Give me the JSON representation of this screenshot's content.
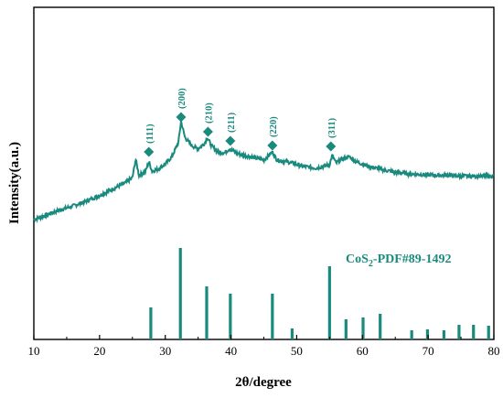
{
  "chart_data": {
    "type": "line",
    "xlabel": "2θ/degree",
    "ylabel": "Intensity(a.u.)",
    "xlim": [
      10,
      80
    ],
    "x_ticks": [
      "10",
      "20",
      "30",
      "40",
      "50",
      "60",
      "70",
      "80"
    ],
    "y_ticks": "none",
    "grid": false,
    "colors": {
      "series": "#1a8a7e",
      "axis": "#000000"
    },
    "series": [
      {
        "x": [
          10,
          12,
          14,
          16,
          18,
          20,
          22,
          24,
          25,
          25.5,
          26,
          27,
          27.5,
          28,
          29,
          30,
          31,
          32,
          32.4,
          33,
          34,
          35,
          36,
          36.4,
          37,
          38,
          39,
          39.8,
          41,
          43,
          45,
          46.3,
          47,
          49,
          51,
          53,
          55,
          55.4,
          56,
          57,
          58,
          59,
          61,
          63,
          65,
          67,
          69,
          71,
          73,
          75,
          77,
          79,
          80
        ],
        "y": [
          0,
          0.06,
          0.12,
          0.17,
          0.23,
          0.3,
          0.38,
          0.46,
          0.52,
          0.75,
          0.55,
          0.6,
          0.72,
          0.6,
          0.63,
          0.69,
          0.78,
          0.96,
          1.22,
          1.02,
          0.92,
          0.88,
          0.95,
          1.02,
          0.92,
          0.84,
          0.83,
          0.88,
          0.82,
          0.78,
          0.74,
          0.84,
          0.74,
          0.71,
          0.66,
          0.64,
          0.68,
          0.8,
          0.7,
          0.76,
          0.78,
          0.72,
          0.66,
          0.62,
          0.59,
          0.57,
          0.56,
          0.55,
          0.55,
          0.54,
          0.54,
          0.54,
          0.54
        ]
      }
    ],
    "peak_labels": [
      {
        "x": 27.5,
        "label": "(111)"
      },
      {
        "x": 32.4,
        "label": "(200)"
      },
      {
        "x": 36.5,
        "label": "(210)"
      },
      {
        "x": 39.9,
        "label": "(211)"
      },
      {
        "x": 46.3,
        "label": "(220)"
      },
      {
        "x": 55.2,
        "label": "(311)"
      }
    ],
    "reference": {
      "label": "CoS2-PDF#89-1492",
      "label_main": "CoS",
      "label_sub": "2",
      "label_rest": "-PDF#89-1492",
      "x": [
        27.8,
        32.3,
        36.3,
        39.9,
        46.3,
        49.3,
        55.0,
        57.5,
        60.1,
        62.7,
        67.5,
        69.9,
        72.4,
        74.7,
        76.9,
        79.2
      ],
      "y": [
        0.35,
        1.0,
        0.58,
        0.5,
        0.5,
        0.12,
        0.8,
        0.22,
        0.24,
        0.28,
        0.1,
        0.11,
        0.1,
        0.16,
        0.16,
        0.15
      ]
    }
  }
}
